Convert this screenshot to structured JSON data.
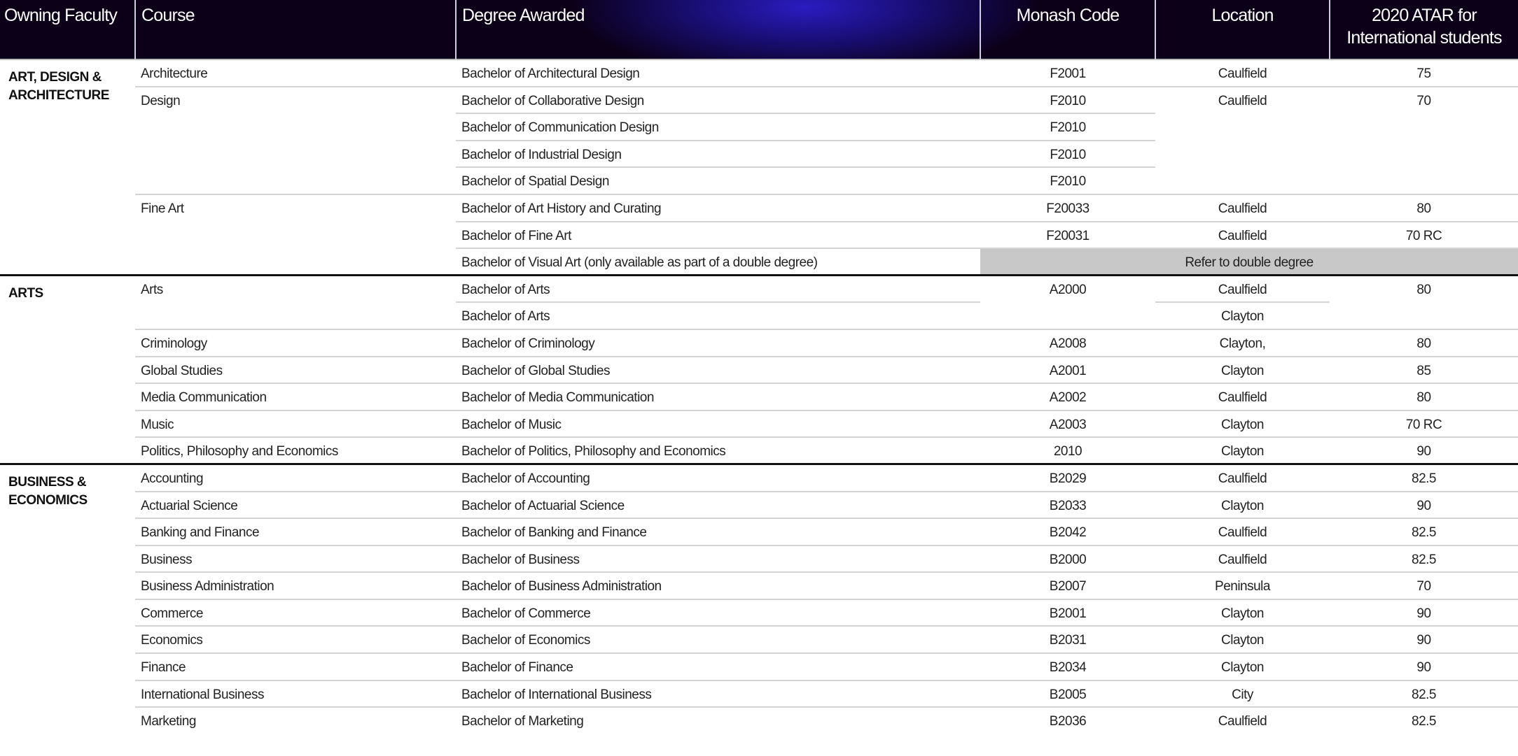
{
  "headers": [
    "Owning Faculty",
    "Course",
    "Degree Awarded",
    "Monash Code",
    "Location",
    "2020 ATAR for International students"
  ],
  "faculties": [
    {
      "name": "ART, DESIGN & ARCHITECTURE",
      "courses": [
        {
          "name": "Architecture",
          "degrees": [
            {
              "degree": "Bachelor of Architectural Design",
              "code": "F2001",
              "location": "Caulfield",
              "atar": "75"
            }
          ]
        },
        {
          "name": "Design",
          "degrees": [
            {
              "degree": "Bachelor of Collaborative Design",
              "code": "F2010",
              "location": "Caulfield",
              "atar": "70"
            },
            {
              "degree": "Bachelor of Communication Design",
              "code": "F2010",
              "location": null,
              "atar": null
            },
            {
              "degree": "Bachelor of Industrial Design",
              "code": "F2010",
              "location": null,
              "atar": null
            },
            {
              "degree": "Bachelor of Spatial Design",
              "code": "F2010",
              "location": null,
              "atar": null
            }
          ]
        },
        {
          "name": "Fine Art",
          "degrees": [
            {
              "degree": "Bachelor of Art History and Curating",
              "code": "F20033",
              "location": "Caulfield",
              "atar": "80"
            },
            {
              "degree": "Bachelor of Fine Art",
              "code": "F20031",
              "location": "Caulfield",
              "atar": "70 RC"
            },
            {
              "degree": "Bachelor of Visual Art (only available as part of a double degree)",
              "refer": "Refer to double degree"
            }
          ]
        }
      ]
    },
    {
      "name": "ARTS",
      "courses": [
        {
          "name": "Arts",
          "degrees": [
            {
              "degree": "Bachelor of Arts",
              "code": "A2000",
              "location": "Caulfield",
              "atar": "80"
            },
            {
              "degree": "Bachelor of Arts",
              "code": null,
              "location": "Clayton",
              "atar": null
            }
          ]
        },
        {
          "name": "Criminology",
          "degrees": [
            {
              "degree": "Bachelor of Criminology",
              "code": "A2008",
              "location": "Clayton,",
              "atar": "80"
            }
          ]
        },
        {
          "name": "Global Studies",
          "degrees": [
            {
              "degree": "Bachelor of Global Studies",
              "code": "A2001",
              "location": "Clayton",
              "atar": "85"
            }
          ]
        },
        {
          "name": "Media Communication",
          "degrees": [
            {
              "degree": "Bachelor of Media Communication",
              "code": "A2002",
              "location": "Caulfield",
              "atar": "80"
            }
          ]
        },
        {
          "name": "Music",
          "degrees": [
            {
              "degree": "Bachelor of Music",
              "code": "A2003",
              "location": "Clayton",
              "atar": "70 RC"
            }
          ]
        },
        {
          "name": "Politics, Philosophy and Economics",
          "degrees": [
            {
              "degree": "Bachelor of Politics, Philosophy and Economics",
              "code": "2010",
              "location": "Clayton",
              "atar": "90"
            }
          ]
        }
      ]
    },
    {
      "name": "BUSINESS & ECONOMICS",
      "courses": [
        {
          "name": "Accounting",
          "degrees": [
            {
              "degree": "Bachelor of Accounting",
              "code": "B2029",
              "location": "Caulfield",
              "atar": "82.5"
            }
          ]
        },
        {
          "name": "Actuarial Science",
          "degrees": [
            {
              "degree": "Bachelor of Actuarial Science",
              "code": "B2033",
              "location": "Clayton",
              "atar": "90"
            }
          ]
        },
        {
          "name": "Banking and Finance",
          "degrees": [
            {
              "degree": "Bachelor of Banking and Finance",
              "code": "B2042",
              "location": "Caulfield",
              "atar": "82.5"
            }
          ]
        },
        {
          "name": "Business",
          "degrees": [
            {
              "degree": "Bachelor of Business",
              "code": "B2000",
              "location": "Caulfield",
              "atar": "82.5"
            }
          ]
        },
        {
          "name": "Business Administration",
          "degrees": [
            {
              "degree": "Bachelor of Business Administration",
              "code": "B2007",
              "location": "Peninsula",
              "atar": "70"
            }
          ]
        },
        {
          "name": "Commerce",
          "degrees": [
            {
              "degree": "Bachelor of Commerce",
              "code": "B2001",
              "location": "Clayton",
              "atar": "90"
            }
          ]
        },
        {
          "name": "Economics",
          "degrees": [
            {
              "degree": "Bachelor of Economics",
              "code": "B2031",
              "location": "Clayton",
              "atar": "90"
            }
          ]
        },
        {
          "name": "Finance",
          "degrees": [
            {
              "degree": "Bachelor of Finance",
              "code": "B2034",
              "location": "Clayton",
              "atar": "90"
            }
          ]
        },
        {
          "name": "International Business",
          "degrees": [
            {
              "degree": "Bachelor of International Business",
              "code": "B2005",
              "location": "City",
              "atar": "82.5"
            }
          ]
        },
        {
          "name": "Marketing",
          "degrees": [
            {
              "degree": "Bachelor of Marketing",
              "code": "B2036",
              "location": "Caulfield",
              "atar": "82.5"
            }
          ]
        }
      ]
    }
  ]
}
